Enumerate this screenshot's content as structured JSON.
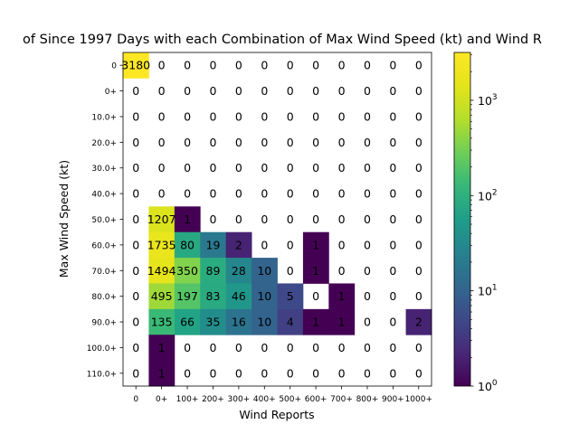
{
  "chart_data": {
    "type": "heatmap",
    "title": "of Since 1997 Days with each Combination of Max Wind Speed (kt) and Wind R",
    "xlabel": "Wind Reports",
    "ylabel": "Max Wind Speed (kt)",
    "x_categories": [
      "0",
      "0+",
      "100+",
      "200+",
      "300+",
      "400+",
      "500+",
      "600+",
      "700+",
      "800+",
      "900+",
      "1000+"
    ],
    "y_categories": [
      "0",
      "0+",
      "10.0+",
      "20.0+",
      "30.0+",
      "40.0+",
      "50.0+",
      "60.0+",
      "70.0+",
      "80.0+",
      "90.0+",
      "100.0+",
      "110.0+"
    ],
    "values": [
      [
        3180,
        0,
        0,
        0,
        0,
        0,
        0,
        0,
        0,
        0,
        0,
        0
      ],
      [
        0,
        0,
        0,
        0,
        0,
        0,
        0,
        0,
        0,
        0,
        0,
        0
      ],
      [
        0,
        0,
        0,
        0,
        0,
        0,
        0,
        0,
        0,
        0,
        0,
        0
      ],
      [
        0,
        0,
        0,
        0,
        0,
        0,
        0,
        0,
        0,
        0,
        0,
        0
      ],
      [
        0,
        0,
        0,
        0,
        0,
        0,
        0,
        0,
        0,
        0,
        0,
        0
      ],
      [
        0,
        0,
        0,
        0,
        0,
        0,
        0,
        0,
        0,
        0,
        0,
        0
      ],
      [
        0,
        1207,
        1,
        0,
        0,
        0,
        0,
        0,
        0,
        0,
        0,
        0
      ],
      [
        0,
        1735,
        80,
        19,
        2,
        0,
        0,
        1,
        0,
        0,
        0,
        0
      ],
      [
        0,
        1494,
        350,
        89,
        28,
        10,
        0,
        1,
        0,
        0,
        0,
        0
      ],
      [
        0,
        495,
        197,
        83,
        46,
        10,
        5,
        0,
        1,
        0,
        0,
        0
      ],
      [
        0,
        135,
        66,
        35,
        16,
        10,
        4,
        1,
        1,
        0,
        0,
        2
      ],
      [
        0,
        1,
        0,
        0,
        0,
        0,
        0,
        0,
        0,
        0,
        0,
        0
      ],
      [
        0,
        1,
        0,
        0,
        0,
        0,
        0,
        0,
        0,
        0,
        0,
        0
      ]
    ],
    "colorbar": {
      "scale": "log",
      "range": [
        1,
        3180
      ],
      "tick_labels": [
        "10^0",
        "10^1",
        "10^2",
        "10^3"
      ],
      "ticks": [
        1,
        10,
        100,
        1000
      ],
      "colormap": "viridis"
    },
    "grid": false
  }
}
